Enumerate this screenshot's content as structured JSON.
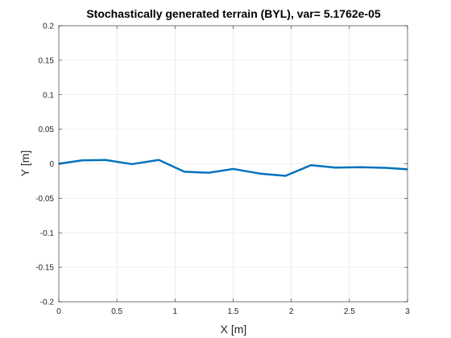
{
  "chart_data": {
    "type": "line",
    "title": "Stochastically generated terrain (BYL), var= 5.1762e-05",
    "xlabel": "X [m]",
    "ylabel": "Y [m]",
    "xlim": [
      0,
      3
    ],
    "ylim": [
      -0.2,
      0.2
    ],
    "x_ticks": [
      0,
      0.5,
      1,
      1.5,
      2,
      2.5,
      3
    ],
    "x_tick_labels": [
      "0",
      "0.5",
      "1",
      "1.5",
      "2",
      "2.5",
      "3"
    ],
    "y_ticks": [
      0.2,
      0.15,
      0.1,
      0.05,
      0,
      -0.05,
      -0.1,
      -0.15,
      -0.2
    ],
    "y_tick_labels": [
      "0.2",
      "0.15",
      "0.1",
      "0.05",
      "0",
      "-0.05",
      "-0.1",
      "-0.15",
      "-0.2"
    ],
    "grid": true,
    "series": [
      {
        "color": "#0072BD",
        "x": [
          0,
          0.2,
          0.4,
          0.63,
          0.86,
          1.08,
          1.29,
          1.5,
          1.74,
          1.95,
          2.17,
          2.38,
          2.6,
          2.82,
          3.0
        ],
        "y": [
          0,
          0.005,
          0.0055,
          -0.0005,
          0.0055,
          -0.0115,
          -0.013,
          -0.0075,
          -0.0145,
          -0.0175,
          -0.002,
          -0.0055,
          -0.005,
          -0.006,
          -0.008
        ]
      }
    ]
  }
}
